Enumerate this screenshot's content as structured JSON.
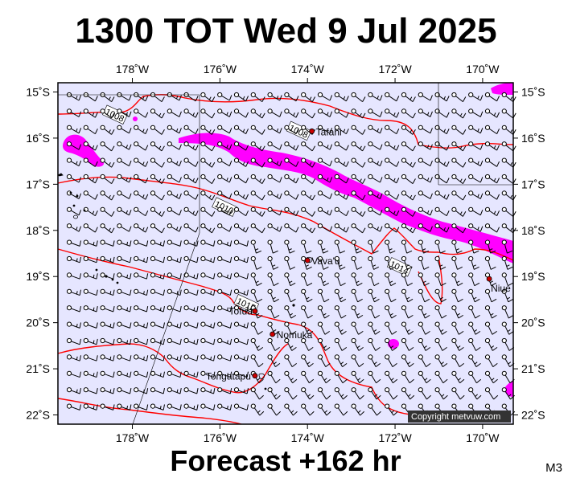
{
  "title": "1300 TOT Wed 9 Jul 2025",
  "footer": "Forecast +162 hr",
  "map_code": "M3",
  "copyright": "Copyright metvuw.com",
  "map": {
    "lon_range": [
      -179.7,
      -169.3
    ],
    "lat_range": [
      -22.2,
      -14.8
    ],
    "lon_ticks": [
      {
        "value": -178,
        "label": "178˚W"
      },
      {
        "value": -176,
        "label": "176˚W"
      },
      {
        "value": -174,
        "label": "174˚W"
      },
      {
        "value": -172,
        "label": "172˚W"
      },
      {
        "value": -170,
        "label": "170˚W"
      }
    ],
    "lat_ticks": [
      {
        "value": -15,
        "label": "15˚S"
      },
      {
        "value": -16,
        "label": "16˚S"
      },
      {
        "value": -17,
        "label": "17˚S"
      },
      {
        "value": -18,
        "label": "18˚S"
      },
      {
        "value": -19,
        "label": "19˚S"
      },
      {
        "value": -20,
        "label": "20˚S"
      },
      {
        "value": -21,
        "label": "21˚S"
      },
      {
        "value": -22,
        "label": "22˚S"
      }
    ],
    "places": [
      {
        "name": "Tafahi",
        "lon": -173.9,
        "lat": -15.85
      },
      {
        "name": "Vava'u",
        "lon": -174.0,
        "lat": -18.65
      },
      {
        "name": "Niue",
        "lon": -169.85,
        "lat": -19.05
      },
      {
        "name": "Tofua",
        "lon": -175.2,
        "lat": -19.75
      },
      {
        "name": "Nomuka",
        "lon": -174.8,
        "lat": -20.25
      },
      {
        "name": "Tongatapu",
        "lon": -175.2,
        "lat": -21.15
      }
    ],
    "isobars": [
      {
        "label": "1008",
        "label_lon": -178.4,
        "label_lat": -15.5
      },
      {
        "label": "1008",
        "label_lon": -174.2,
        "label_lat": -15.85
      },
      {
        "label": "1010",
        "label_lon": -175.9,
        "label_lat": -17.5
      },
      {
        "label": "1014",
        "label_lon": -171.9,
        "label_lat": -18.8
      },
      {
        "label": "1015",
        "label_lon": -175.4,
        "label_lat": -19.6
      }
    ],
    "colors": {
      "sea": "#e6e6ff",
      "isobar": "#ff0000",
      "rain": "#ff00ff",
      "place_dot": "#cc0000"
    }
  }
}
